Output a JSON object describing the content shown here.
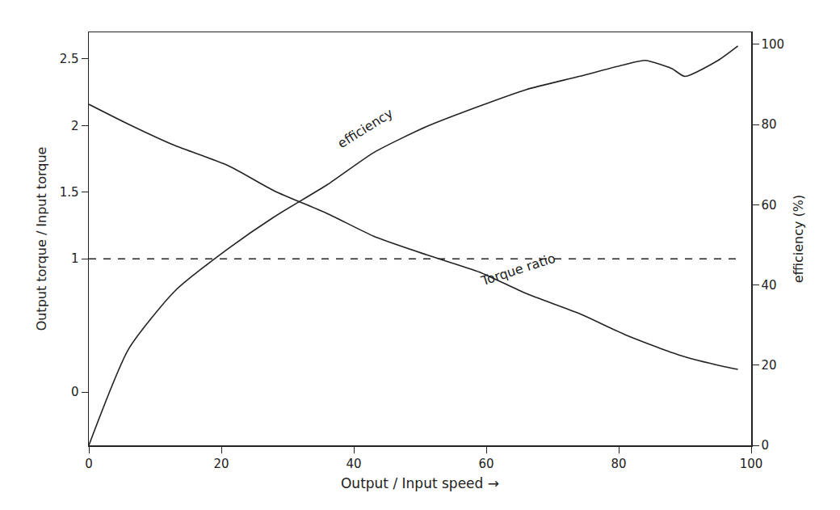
{
  "chart_data": {
    "type": "line",
    "x_label": "Output / Input speed →",
    "y_label": "Output torque / Input torque",
    "y2_label": "efficiency (%)",
    "xlim": [
      0,
      100
    ],
    "xticks": [
      0,
      20,
      40,
      60,
      80,
      100
    ],
    "ylim": [
      -0.4,
      2.7
    ],
    "yticks": [
      0,
      1,
      1.5,
      2,
      2.5
    ],
    "y2lim": [
      0,
      103
    ],
    "y2ticks": [
      0,
      20,
      40,
      60,
      80,
      100
    ],
    "grid": false,
    "series": [
      {
        "name": "efficiency",
        "axis": "y2",
        "color": "#222222",
        "x": [
          0,
          6,
          13,
          21,
          28,
          36,
          43,
          51,
          59,
          66,
          74,
          81,
          84,
          88,
          90,
          95,
          98
        ],
        "values": [
          0,
          24,
          38.5,
          49,
          57,
          65,
          73,
          79.5,
          84.6,
          88.7,
          92,
          95,
          96,
          94,
          92,
          96,
          99.6
        ]
      },
      {
        "name": "Torque ratio",
        "color": "#222222",
        "x": [
          0,
          6,
          13,
          21,
          28,
          36,
          43,
          51,
          59,
          66,
          74,
          81,
          89,
          96,
          98
        ],
        "values": [
          2.16,
          2.01,
          1.85,
          1.7,
          1.51,
          1.34,
          1.17,
          1.03,
          0.9,
          0.74,
          0.59,
          0.43,
          0.28,
          0.19,
          0.17
        ]
      },
      {
        "color": "#222222",
        "line_style": "dash",
        "x": [
          0,
          98
        ],
        "values": [
          1,
          1
        ]
      }
    ]
  }
}
